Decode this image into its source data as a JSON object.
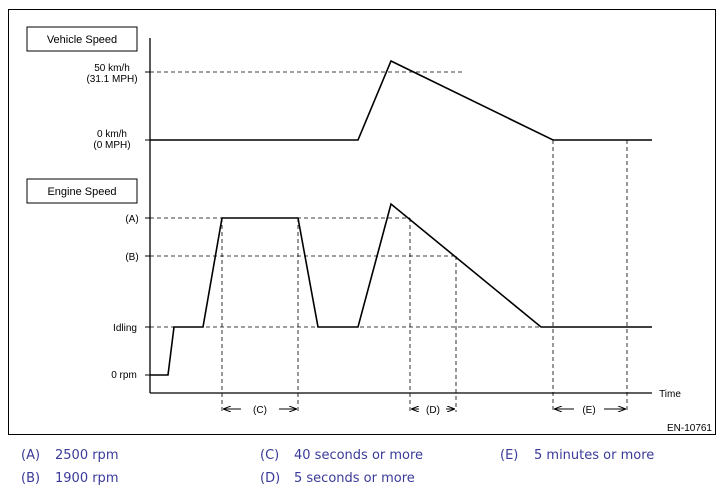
{
  "diagram": {
    "box_vehicle": "Vehicle Speed",
    "box_engine": "Engine Speed",
    "label_50kmh": "50 km/h",
    "label_311mph": "(31.1 MPH)",
    "label_0kmh": "0 km/h",
    "label_0mph": "(0 MPH)",
    "label_a": "(A)",
    "label_b": "(B)",
    "label_idling": "Idling",
    "label_0rpm": "0 rpm",
    "label_time": "Time",
    "interval_c": "(C)",
    "interval_d": "(D)",
    "interval_e": "(E)",
    "figure_id": "EN-10761"
  },
  "legend": [
    {
      "key": "(A)",
      "text": "2500 rpm"
    },
    {
      "key": "(B)",
      "text": "1900 rpm"
    },
    {
      "key": "(C)",
      "text": "40 seconds or more"
    },
    {
      "key": "(D)",
      "text": "5 seconds or more"
    },
    {
      "key": "(E)",
      "text": "5 minutes or more"
    }
  ]
}
